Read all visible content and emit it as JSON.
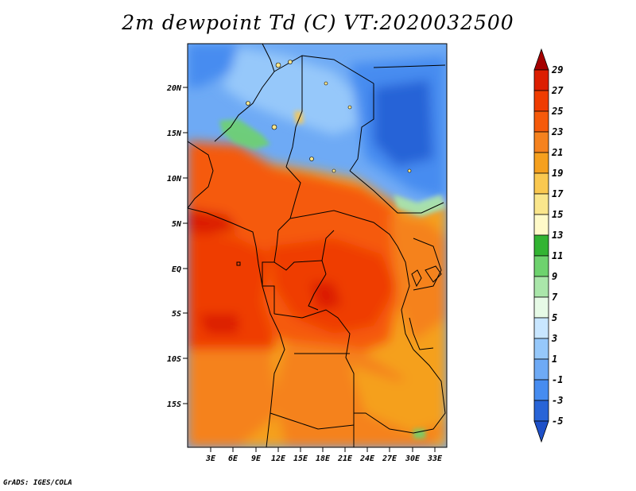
{
  "title": "2m dewpoint Td (C) VT:2020032500",
  "credit": "GrADS: IGES/COLA",
  "map": {
    "lat_labels": [
      "20N",
      "15N",
      "10N",
      "5N",
      "EQ",
      "5S",
      "10S",
      "15S"
    ],
    "lon_labels": [
      "3E",
      "6E",
      "9E",
      "12E",
      "15E",
      "18E",
      "21E",
      "24E",
      "27E",
      "30E",
      "33E"
    ],
    "region": "Central Africa (lon ~0E to 34.5E, lat ~20S to 25N)"
  },
  "colorbar": {
    "labels": [
      "29",
      "27",
      "25",
      "23",
      "21",
      "19",
      "17",
      "15",
      "13",
      "11",
      "9",
      "7",
      "5",
      "3",
      "1",
      "-1",
      "-3",
      "-5"
    ],
    "colors": [
      "#a50000",
      "#dc1e00",
      "#ef3c00",
      "#f55a0a",
      "#f5821e",
      "#f5a01e",
      "#fac850",
      "#fae68c",
      "#fffac8",
      "#32b432",
      "#6ed26e",
      "#aae6aa",
      "#e6fae6",
      "#c8e6ff",
      "#96c8fa",
      "#6eaaf5",
      "#468cf0",
      "#2864d7",
      "#1e50c8"
    ]
  }
}
